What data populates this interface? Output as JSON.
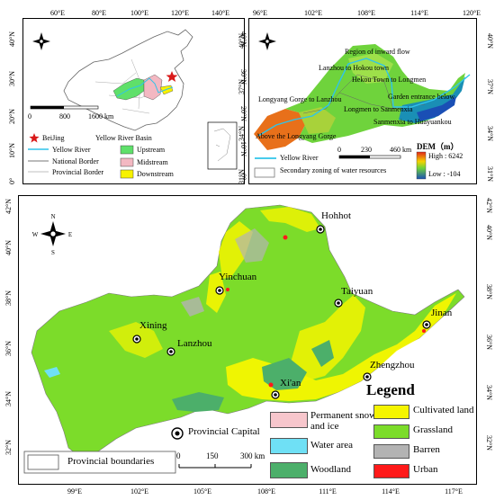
{
  "colors": {
    "upstream": "#5fe06a",
    "midstream": "#f3b8c2",
    "downstream": "#f7f200",
    "yellow_river": "#2fc4ea",
    "beijing_star": "#d91a1a",
    "cultivated": "#f5f500",
    "grassland": "#7cdc2a",
    "barren": "#b3b3b3",
    "urban": "#ff1a1a",
    "snow_ice": "#f7c6cc",
    "water": "#6fe0f5",
    "woodland": "#4caf6a",
    "dem_high": "#e0261a",
    "dem_low": "#1a4fb5"
  },
  "panel_a": {
    "top_ticks": [
      "60°E",
      "80°E",
      "100°E",
      "120°E",
      "140°E"
    ],
    "left_ticks": [
      "40°N",
      "30°N",
      "20°N",
      "10°N",
      "0°"
    ],
    "right_ticks": [
      "40°N",
      "30°N",
      "20°N",
      "10°N",
      "0°"
    ],
    "scale_labels": [
      "0",
      "800",
      "1600 km"
    ],
    "legend": {
      "beijing": "BeiJing",
      "yellow_river_basin": "Yellow River Basin",
      "yellow_river": "Yellow River",
      "national_border": "National Border",
      "provincial_border": "Provincial Border",
      "upstream": "Upstream",
      "midstream": "Midstream",
      "downstream": "Downstream"
    }
  },
  "panel_b": {
    "top_ticks": [
      "96°E",
      "102°E",
      "108°E",
      "114°E",
      "120°E"
    ],
    "left_ticks": [
      "40°N",
      "37°N",
      "34°N",
      "31°N"
    ],
    "right_ticks": [
      "40°N",
      "37°N",
      "34°N",
      "31°N"
    ],
    "zones": [
      "Region of inward flow",
      "Lanzhou to Hokou town",
      "Hekou Town to Longmen",
      "Garden entrance below",
      "Longyang Gorge to Lanzhou",
      "Longmen to Sanmenxia",
      "Sanmenxia to Huayuankou",
      "Above the Longyang Gorge"
    ],
    "scale_labels": [
      "0",
      "230",
      "460 km"
    ],
    "legend": {
      "yellow_river": "Yellow River",
      "secondary_zoning": "Secondary zoning of water resources",
      "dem_title": "DEM（m）",
      "dem_high": "High : 6242",
      "dem_low": "Low : -104"
    }
  },
  "panel_c": {
    "bottom_ticks": [
      "99°E",
      "102°E",
      "105°E",
      "108°E",
      "111°E",
      "114°E",
      "117°E"
    ],
    "left_ticks": [
      "42°N",
      "40°N",
      "38°N",
      "36°N",
      "34°N",
      "32°N"
    ],
    "right_ticks": [
      "42°N",
      "40°N",
      "38°N",
      "36°N",
      "34°N",
      "32°N"
    ],
    "cities": [
      "Hohhot",
      "Yinchuan",
      "Taiyuan",
      "Jinan",
      "Xining",
      "Lanzhou",
      "Zhengzhou",
      "Xi'an"
    ],
    "legend": {
      "title": "Legend",
      "provincial_capital": "Provincial Capital",
      "provincial_boundaries": "Provincial boundaries",
      "scale_labels": [
        "0",
        "150",
        "300 km"
      ],
      "classes": [
        "Permanent snow and ice",
        "Water area",
        "Woodland",
        "Cultivated land",
        "Grassland",
        "Barren",
        "Urban"
      ]
    }
  }
}
